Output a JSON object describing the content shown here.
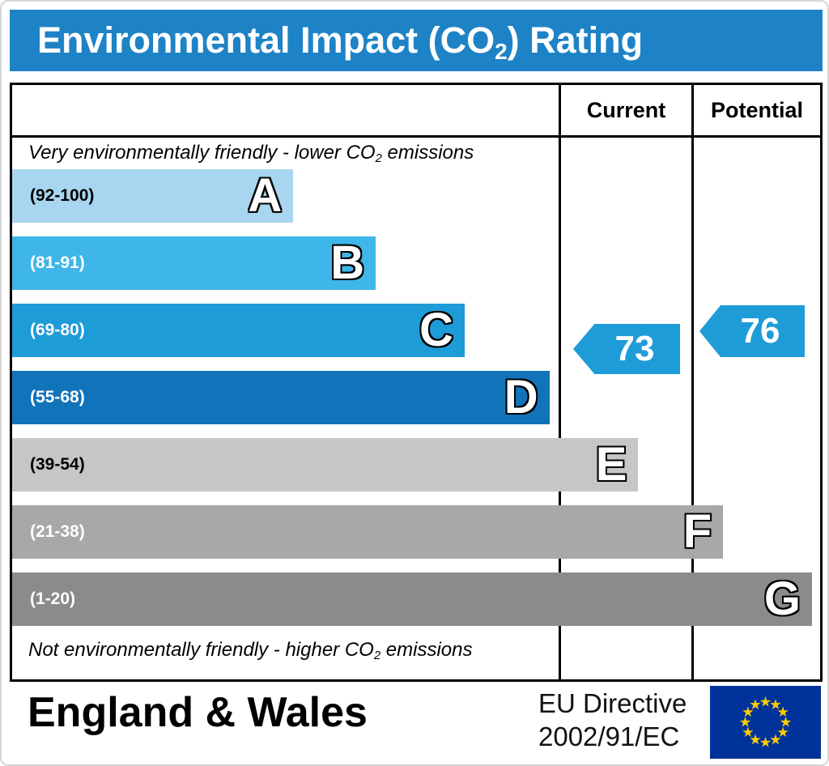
{
  "title": {
    "pre": "Environmental Impact (CO",
    "sub": "2",
    "post": ") Rating",
    "bg": "#1e83c6"
  },
  "header": {
    "current": "Current",
    "potential": "Potential"
  },
  "notes": {
    "top": {
      "pre": "Very environmentally friendly - lower CO",
      "sub": "2",
      "post": " emissions"
    },
    "bottom": {
      "pre": "Not environmentally friendly - higher CO",
      "sub": "2",
      "post": " emissions"
    }
  },
  "chart_data": {
    "type": "bar",
    "title": "Environmental Impact (CO2) Rating",
    "bands": [
      {
        "letter": "A",
        "range": "(92-100)",
        "color": "#a8d6f0",
        "text_color": "#000000",
        "width_pct": 34.8
      },
      {
        "letter": "B",
        "range": "(81-91)",
        "color": "#3eb6e9",
        "text_color": "#ffffff",
        "width_pct": 45.0
      },
      {
        "letter": "C",
        "range": "(69-80)",
        "color": "#1e9cd8",
        "text_color": "#ffffff",
        "width_pct": 56.0
      },
      {
        "letter": "D",
        "range": "(55-68)",
        "color": "#1173b9",
        "text_color": "#ffffff",
        "width_pct": 66.5
      },
      {
        "letter": "E",
        "range": "(39-54)",
        "color": "#c6c6c6",
        "text_color": "#000000",
        "width_pct": 77.5
      },
      {
        "letter": "F",
        "range": "(21-38)",
        "color": "#a8a8a8",
        "text_color": "#ffffff",
        "width_pct": 88.0
      },
      {
        "letter": "G",
        "range": "(1-20)",
        "color": "#8b8b8b",
        "text_color": "#ffffff",
        "width_pct": 99.0
      }
    ],
    "current": {
      "value": "73",
      "band": "C",
      "color": "#1e9cd8"
    },
    "potential": {
      "value": "76",
      "band": "C",
      "color": "#1e9cd8"
    }
  },
  "footer": {
    "region": "England & Wales",
    "directive": {
      "line1": "EU Directive",
      "line2": "2002/91/EC"
    },
    "flag": {
      "name": "eu-flag",
      "bg": "#003399",
      "star": "#ffcc00"
    }
  }
}
